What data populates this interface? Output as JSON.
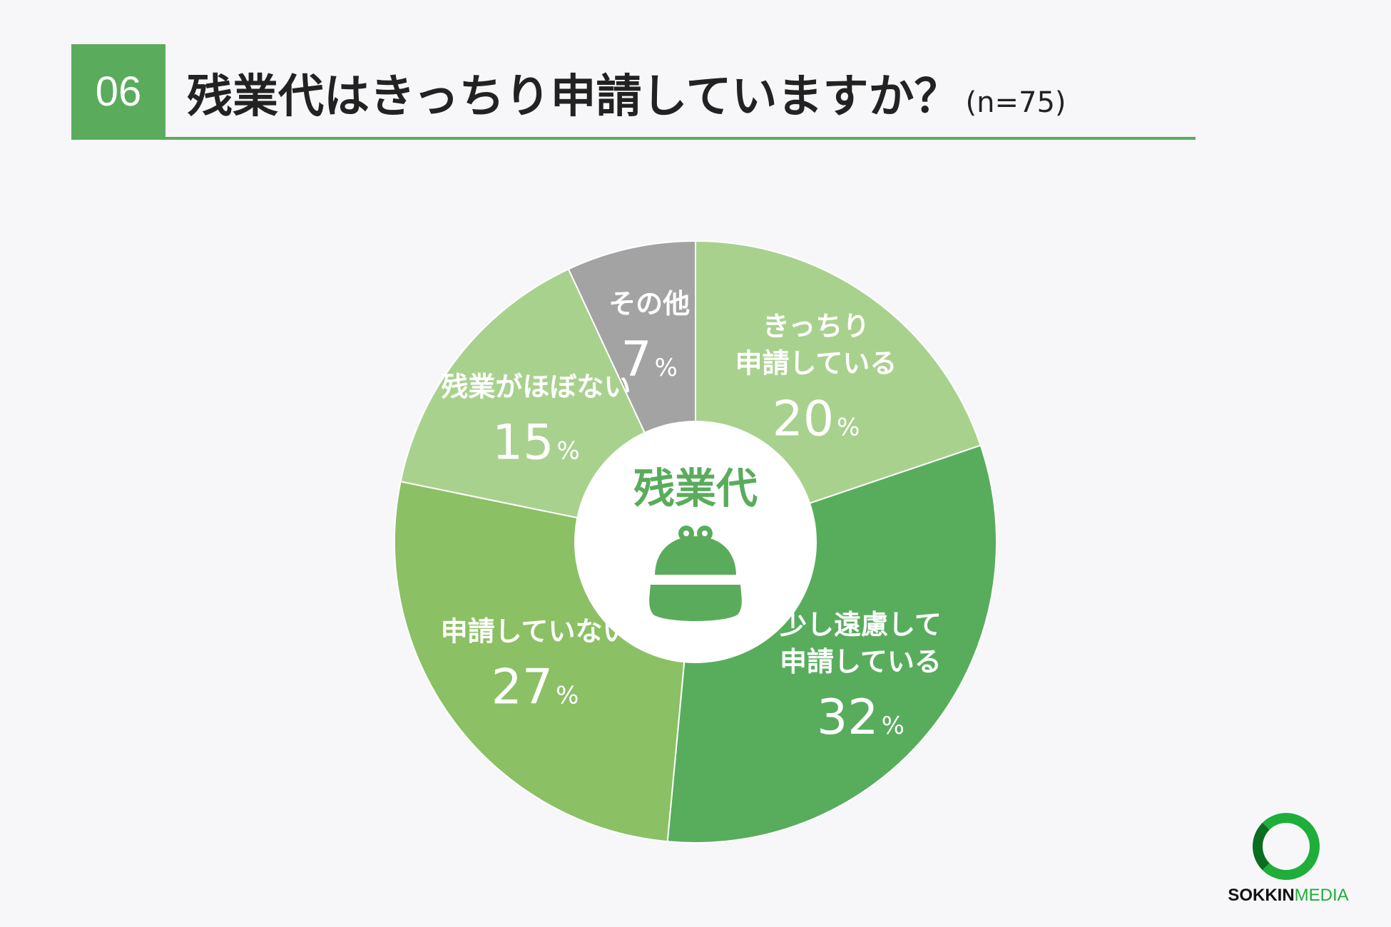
{
  "header": {
    "number": "06",
    "title": "残業代はきっちり申請していますか？",
    "sample": "(n=75)"
  },
  "chart_data": {
    "type": "pie",
    "title": "残業代はきっちり申請していますか？",
    "center_label": "残業代",
    "unit": "%",
    "slices": [
      {
        "label_lines": [
          "きっちり",
          "申請している"
        ],
        "value": 20,
        "color": "#a9d18e"
      },
      {
        "label_lines": [
          "少し遠慮して",
          "申請している"
        ],
        "value": 32,
        "color": "#58ad5d"
      },
      {
        "label_lines": [
          "申請していない"
        ],
        "value": 27,
        "color": "#8bc064"
      },
      {
        "label_lines": [
          "残業がほぼない"
        ],
        "value": 15,
        "color": "#a9d18e"
      },
      {
        "label_lines": [
          "その他"
        ],
        "value": 7,
        "color": "#a3a3a3"
      }
    ],
    "center_icon": "purse-icon"
  },
  "logo": {
    "part1": "SOKKIN",
    "part2": "MEDIA"
  }
}
